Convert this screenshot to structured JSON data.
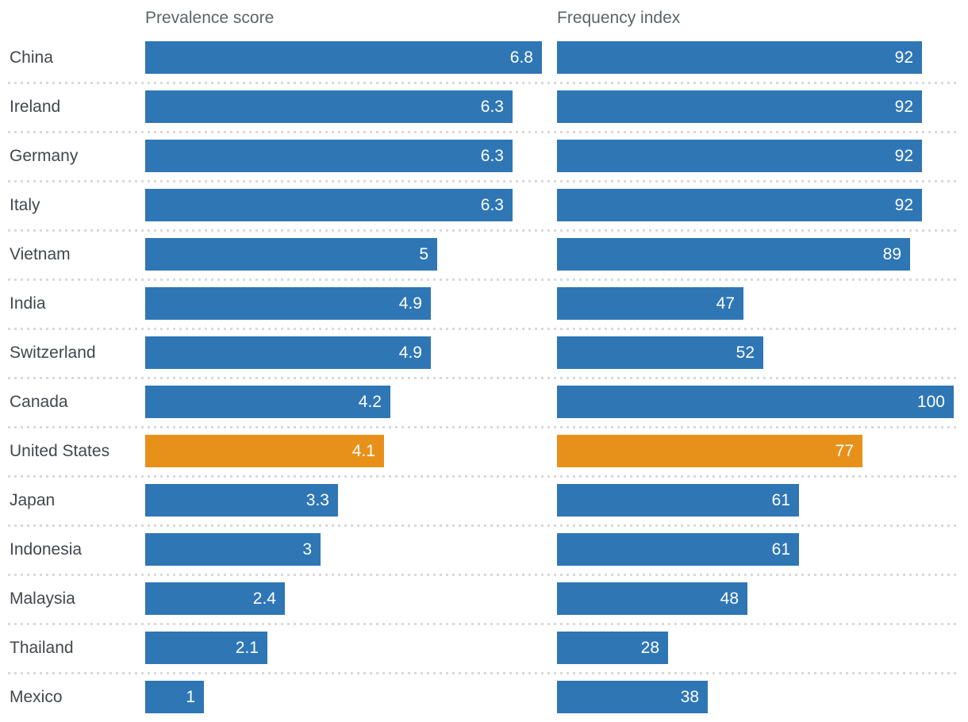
{
  "columns": [
    {
      "label": "Prevalence score"
    },
    {
      "label": "Frequency index"
    }
  ],
  "colors": {
    "bar_default": "#2f76b5",
    "bar_highlight": "#e8911a",
    "header_text": "#5d6368",
    "label_text": "#42474c",
    "value_text": "#ffffff",
    "separator": "#d9d9d9",
    "background": "#ffffff"
  },
  "chart_data": {
    "type": "bar",
    "orientation": "horizontal",
    "title": "",
    "categories": [
      "China",
      "Ireland",
      "Germany",
      "Italy",
      "Vietnam",
      "India",
      "Switzerland",
      "Canada",
      "United States",
      "Japan",
      "Indonesia",
      "Malaysia",
      "Thailand",
      "Mexico"
    ],
    "highlighted_category": "United States",
    "value_label_position": "inside-right",
    "grid": "dotted horizontal separators between rows",
    "series": [
      {
        "name": "Prevalence score",
        "axis_max": 6.8,
        "xlim": [
          0,
          6.8
        ],
        "values": [
          6.8,
          6.3,
          6.3,
          6.3,
          5,
          4.9,
          4.9,
          4.2,
          4.1,
          3.3,
          3,
          2.4,
          2.1,
          1
        ]
      },
      {
        "name": "Frequency index",
        "axis_max": 100,
        "xlim": [
          0,
          100
        ],
        "values": [
          92,
          92,
          92,
          92,
          89,
          47,
          52,
          100,
          77,
          61,
          61,
          48,
          28,
          38
        ]
      }
    ]
  }
}
